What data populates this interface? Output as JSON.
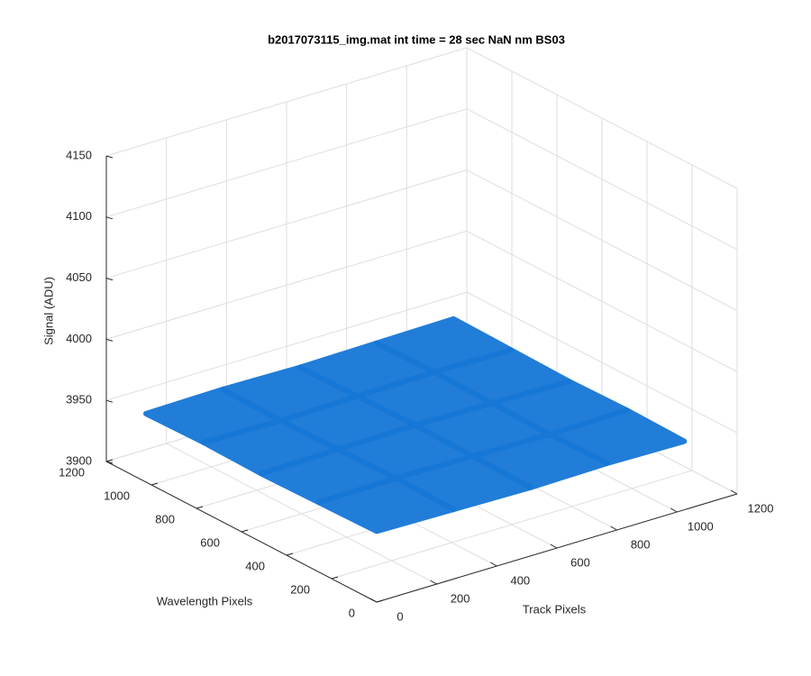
{
  "chart_data": {
    "type": "surface",
    "title": "b2017073115_img.mat int time = 28 sec  NaN nm BS03",
    "xlabel": "Track Pixels",
    "ylabel": "Wavelength Pixels",
    "zlabel": "Signal (ADU)",
    "xlim": [
      0,
      1200
    ],
    "ylim": [
      0,
      1200
    ],
    "zlim": [
      3900,
      4150
    ],
    "xticks": [
      0,
      200,
      400,
      600,
      800,
      1000,
      1200
    ],
    "yticks": [
      0,
      200,
      400,
      600,
      800,
      1000,
      1200
    ],
    "zticks": [
      3900,
      3950,
      4000,
      4050,
      4100,
      4150
    ],
    "grid": true,
    "color": "#1677d6",
    "x": [
      0,
      256,
      512,
      768,
      1024
    ],
    "y": [
      0,
      256,
      512,
      768,
      1024
    ],
    "z": [
      [
        3958,
        3957,
        3956,
        3957,
        3956
      ],
      [
        3957,
        3958,
        3957,
        3956,
        3957
      ],
      [
        3956,
        3957,
        3958,
        3957,
        3956
      ],
      [
        3957,
        3956,
        3957,
        3958,
        3957
      ],
      [
        3956,
        3957,
        3956,
        3957,
        3958
      ]
    ]
  }
}
